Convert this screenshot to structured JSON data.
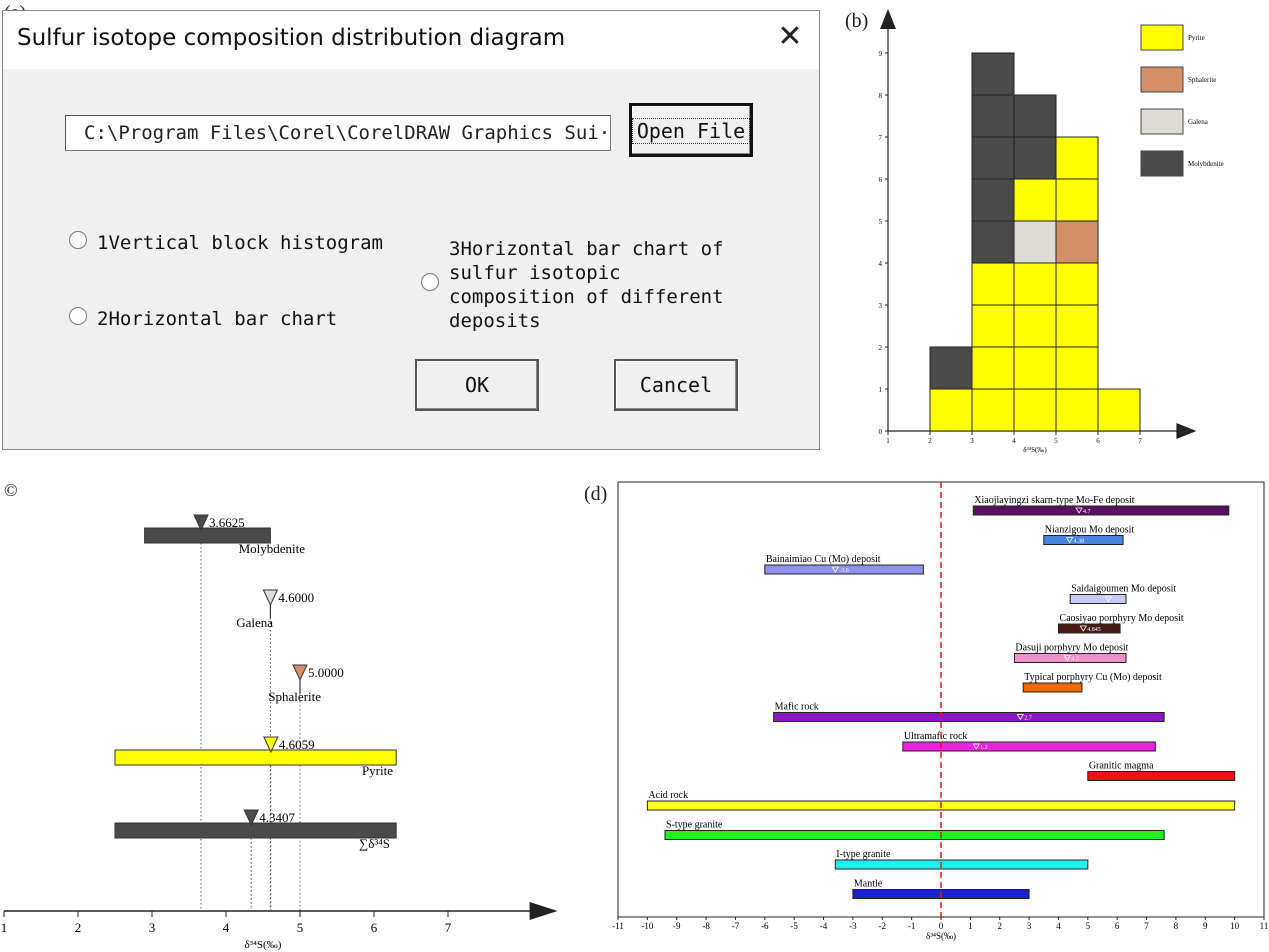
{
  "panel_labels": {
    "a": "(a)",
    "b": "(b)",
    "c": "©",
    "d": "(d)"
  },
  "dialog": {
    "title": "Sulfur isotope composition distribution diagram",
    "close_icon": "close-icon",
    "path_value": "C:\\Program Files\\Corel\\CorelDRAW Graphics Sui·",
    "open_file_label": "Open File",
    "options": [
      {
        "label": "1Vertical block histogram",
        "selected": false
      },
      {
        "label": "2Horizontal bar chart",
        "selected": false
      },
      {
        "label_lines": [
          "3Horizontal bar chart of",
          "sulfur isotopic",
          "composition of different",
          "deposits"
        ],
        "selected": false
      }
    ],
    "ok_label": "OK",
    "cancel_label": "Cancel"
  },
  "chart_data": [
    {
      "type": "bar",
      "panel": "(b)",
      "xlabel": "δ³⁴S(‰)",
      "x_ticks": [
        "1",
        "2",
        "3",
        "4",
        "5",
        "6",
        "7"
      ],
      "y_ticks": [
        "0",
        "1",
        "2",
        "3",
        "4",
        "5",
        "6",
        "7",
        "8",
        "9"
      ],
      "xlim": [
        1,
        8.2
      ],
      "ylim": [
        0,
        10
      ],
      "legend_position": "top-right",
      "legend": [
        {
          "name": "Pyrite",
          "color": "#ffff00"
        },
        {
          "name": "Sphalerite",
          "color": "#d29068"
        },
        {
          "name": "Galena",
          "color": "#dcdcd4"
        },
        {
          "name": "Molybdenite",
          "color": "#4a4a4a"
        }
      ],
      "bins": [
        "2-3",
        "3-4",
        "4-5",
        "5-6",
        "6-7"
      ],
      "stacks": [
        [
          "Pyrite",
          "Molybdenite"
        ],
        [
          "Pyrite",
          "Pyrite",
          "Pyrite",
          "Pyrite",
          "Molybdenite",
          "Molybdenite",
          "Molybdenite",
          "Molybdenite",
          "Molybdenite"
        ],
        [
          "Pyrite",
          "Pyrite",
          "Pyrite",
          "Pyrite",
          "Galena",
          "Pyrite",
          "Molybdenite",
          "Molybdenite"
        ],
        [
          "Pyrite",
          "Pyrite",
          "Pyrite",
          "Pyrite",
          "Sphalerite",
          "Pyrite",
          "Pyrite"
        ],
        [
          "Pyrite"
        ]
      ]
    },
    {
      "type": "bar",
      "orientation": "horizontal",
      "panel": "©",
      "xlabel": "δ³⁴S(‰)",
      "x_ticks": [
        "1",
        "2",
        "3",
        "4",
        "5",
        "6",
        "7"
      ],
      "xlim": [
        1,
        8.4
      ],
      "series": [
        {
          "name": "Molybdenite",
          "min": 2.9,
          "max": 4.6,
          "mean": 3.6625,
          "mean_label": "3.6625",
          "color": "#4a4a4a",
          "marker": "#4a4a4a",
          "show_bar": true
        },
        {
          "name": "Galena",
          "min": 4.6,
          "max": 4.6,
          "mean": 4.6,
          "mean_label": "4.6000",
          "color": "#dcdcd4",
          "marker": "#dcdcd4",
          "show_bar": false
        },
        {
          "name": "Sphalerite",
          "min": 5.0,
          "max": 5.0,
          "mean": 5.0,
          "mean_label": "5.0000",
          "color": "#d29068",
          "marker": "#d29068",
          "show_bar": false
        },
        {
          "name": "Pyrite",
          "min": 2.5,
          "max": 6.3,
          "mean": 4.6059,
          "mean_label": "4.6059",
          "color": "#ffff00",
          "marker": "#ffff00",
          "show_bar": true
        },
        {
          "name": "∑δ³⁴S",
          "min": 2.5,
          "max": 6.3,
          "mean": 4.3407,
          "mean_label": "4.3407",
          "color": "#4a4a4a",
          "marker": "#4a4a4a",
          "show_bar": true
        }
      ]
    },
    {
      "type": "bar",
      "orientation": "horizontal",
      "panel": "(d)",
      "xlabel": "δ³⁴S(‰)",
      "x_ticks": [
        "-11",
        "-10",
        "-9",
        "-8",
        "-7",
        "-6",
        "-5",
        "-4",
        "-3",
        "-2",
        "-1",
        "0",
        "1",
        "2",
        "3",
        "4",
        "5",
        "6",
        "7",
        "8",
        "9",
        "10",
        "11"
      ],
      "xlim": [
        -11,
        11
      ],
      "reference_line": 0,
      "series": [
        {
          "name": "Xiaojiayingzi skarn-type Mo-Fe deposit",
          "min": 1.1,
          "max": 9.8,
          "mean": 4.7,
          "mean_label": "4.7",
          "color": "#5a1060"
        },
        {
          "name": "Nianzigou Mo deposit",
          "min": 3.5,
          "max": 6.2,
          "mean": 4.38,
          "mean_label": "4.38",
          "color": "#4a84e0"
        },
        {
          "name": "Bainaimiao Cu (Mo) deposit",
          "min": -6.0,
          "max": -0.6,
          "mean": -3.6,
          "mean_label": "-3.6",
          "color": "#9090ee"
        },
        {
          "name": "Saidaigoumen Mo deposit",
          "min": 4.4,
          "max": 6.3,
          "mean": 5.7,
          "mean_label": "",
          "color": "#c8c8f4"
        },
        {
          "name": "Caosiyao porphyry Mo deposit",
          "min": 4.0,
          "max": 6.1,
          "mean": 4.845,
          "mean_label": "4.845",
          "color": "#4a1a14"
        },
        {
          "name": "Dasuji porphyry Mo deposit",
          "min": 2.5,
          "max": 6.3,
          "mean": 4.3,
          "mean_label": "4.3",
          "color": "#f090c8"
        },
        {
          "name": "Typical porphyry Cu (Mo) deposit",
          "min": 2.8,
          "max": 4.8,
          "mean": null,
          "mean_label": "",
          "color": "#ee6a00"
        },
        {
          "name": "Mafic rock",
          "min": -5.7,
          "max": 7.6,
          "mean": 2.7,
          "mean_label": "2.7",
          "color": "#8a1ac8"
        },
        {
          "name": "Ultramafic rock",
          "min": -1.3,
          "max": 7.3,
          "mean": 1.2,
          "mean_label": "1.2",
          "color": "#ee22dd"
        },
        {
          "name": "Granitic magma",
          "min": 5.0,
          "max": 10.0,
          "mean": null,
          "mean_label": "",
          "color": "#ee1111"
        },
        {
          "name": "Acid rock",
          "min": -10.0,
          "max": 10.0,
          "mean": null,
          "mean_label": "",
          "color": "#ffff22"
        },
        {
          "name": "S-type granite",
          "min": -9.4,
          "max": 7.6,
          "mean": null,
          "mean_label": "",
          "color": "#22ee22"
        },
        {
          "name": "I-type granite",
          "min": -3.6,
          "max": 5.0,
          "mean": null,
          "mean_label": "",
          "color": "#22eeee"
        },
        {
          "name": "Mantle",
          "min": -3.0,
          "max": 3.0,
          "mean": null,
          "mean_label": "",
          "color": "#1a22cc"
        }
      ]
    }
  ]
}
